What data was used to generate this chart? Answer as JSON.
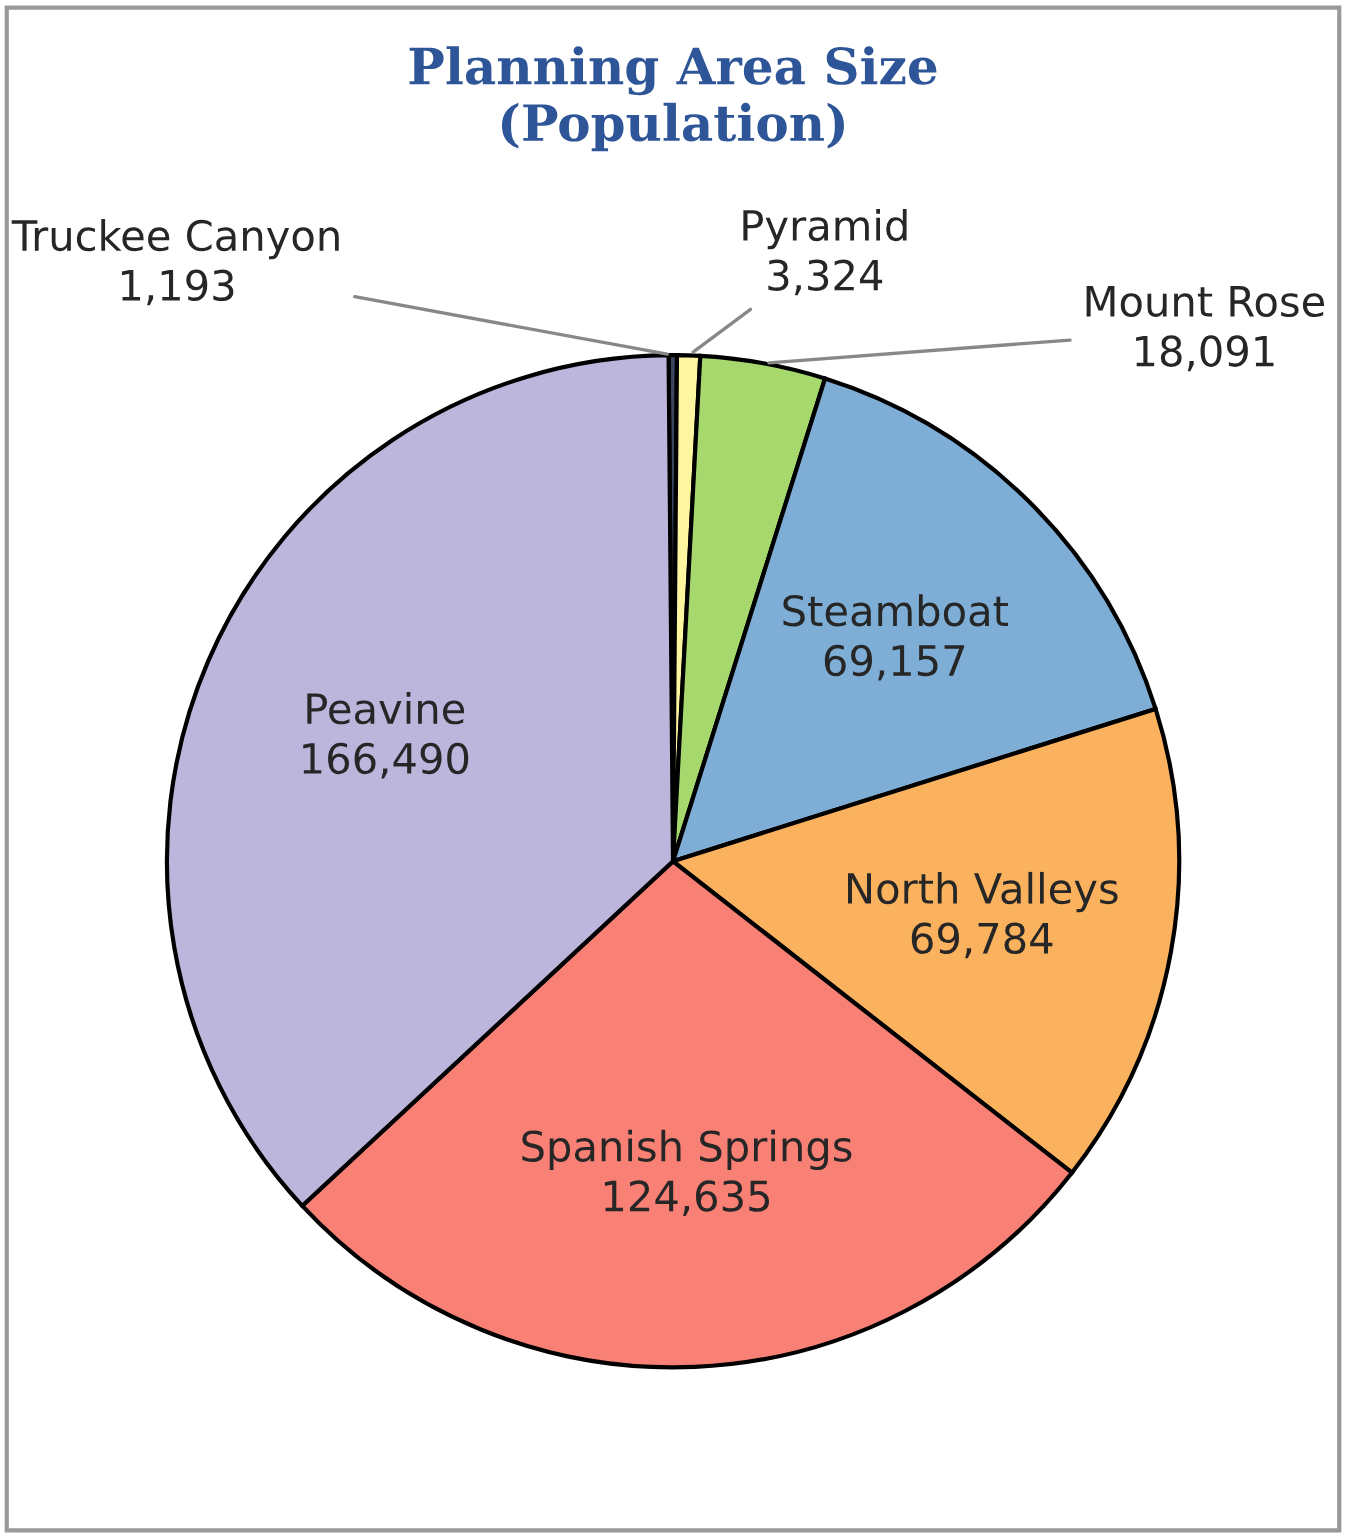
{
  "chart_data": {
    "type": "pie",
    "title": "Planning Area Size\n(Population)",
    "categories": [
      "Truckee Canyon",
      "Pyramid",
      "Mount Rose",
      "Steamboat",
      "North Valleys",
      "Spanish Springs",
      "Peavine"
    ],
    "values": [
      1193,
      3324,
      18091,
      69157,
      69784,
      124635,
      166490
    ],
    "colors": [
      "#3a4660",
      "#fdf5a0",
      "#a6d86e",
      "#7eaed6",
      "#fbb25e",
      "#f98074",
      "#bcb6dc"
    ],
    "value_labels": [
      "1,193",
      "3,324",
      "18,091",
      "69,157",
      "69,784",
      "124,635",
      "166,490"
    ],
    "legend": false
  }
}
